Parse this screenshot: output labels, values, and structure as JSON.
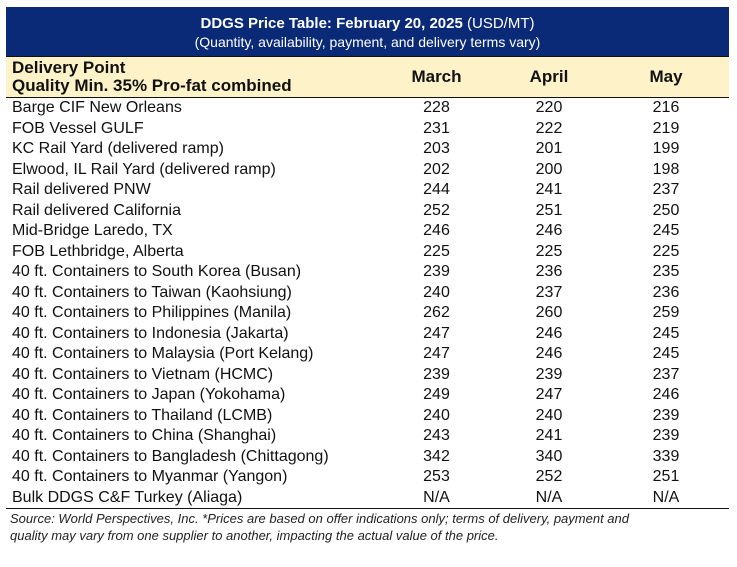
{
  "header": {
    "title_bold": "DDGS Price Table: February 20, 2025",
    "title_unit": " (USD/MT)",
    "subtitle": "(Quantity, availability, payment, and delivery terms vary)"
  },
  "columns": {
    "point_line1": "Delivery Point",
    "point_line2": "Quality Min. 35% Pro-fat combined",
    "months": [
      "March",
      "April",
      "May"
    ]
  },
  "rows": [
    {
      "point": "Barge CIF New Orleans",
      "march": "228",
      "april": "220",
      "may": "216"
    },
    {
      "point": "FOB Vessel GULF",
      "march": "231",
      "april": "222",
      "may": "219"
    },
    {
      "point": "KC Rail Yard (delivered ramp)",
      "march": "203",
      "april": "201",
      "may": "199"
    },
    {
      "point": "Elwood, IL Rail Yard (delivered ramp)",
      "march": "202",
      "april": "200",
      "may": "198"
    },
    {
      "point": "Rail delivered PNW",
      "march": "244",
      "april": "241",
      "may": "237"
    },
    {
      "point": "Rail delivered California",
      "march": "252",
      "april": "251",
      "may": "250"
    },
    {
      "point": "Mid-Bridge Laredo, TX",
      "march": "246",
      "april": "246",
      "may": "245"
    },
    {
      "point": "FOB Lethbridge, Alberta",
      "march": "225",
      "april": "225",
      "may": "225"
    },
    {
      "point": "40 ft. Containers to South Korea (Busan)",
      "march": "239",
      "april": "236",
      "may": "235"
    },
    {
      "point": "40 ft. Containers to Taiwan (Kaohsiung)",
      "march": "240",
      "april": "237",
      "may": "236"
    },
    {
      "point": "40 ft. Containers to Philippines (Manila)",
      "march": "262",
      "april": "260",
      "may": "259"
    },
    {
      "point": "40 ft. Containers to Indonesia (Jakarta)",
      "march": "247",
      "april": "246",
      "may": "245"
    },
    {
      "point": "40 ft. Containers to Malaysia (Port Kelang)",
      "march": "247",
      "april": "246",
      "may": "245"
    },
    {
      "point": "40 ft. Containers to Vietnam (HCMC)",
      "march": "239",
      "april": "239",
      "may": "237"
    },
    {
      "point": "40 ft. Containers to Japan (Yokohama)",
      "march": "249",
      "april": "247",
      "may": "246"
    },
    {
      "point": "40 ft. Containers to Thailand (LCMB)",
      "march": "240",
      "april": "240",
      "may": "239"
    },
    {
      "point": "40 ft. Containers to China (Shanghai)",
      "march": "243",
      "april": "241",
      "may": "239"
    },
    {
      "point": "40 ft. Containers to Bangladesh (Chittagong)",
      "march": "342",
      "april": "340",
      "may": "339"
    },
    {
      "point": "40 ft. Containers to Myanmar (Yangon)",
      "march": "253",
      "april": "252",
      "may": "251"
    },
    {
      "point": "Bulk DDGS C&F Turkey (Aliaga)",
      "march": "N/A",
      "april": "N/A",
      "may": "N/A"
    }
  ],
  "footer": {
    "source_line1": "Source: World Perspectives, Inc. *Prices are based on offer indications only; terms of delivery, payment and",
    "source_line2": "quality may vary from one supplier to another, impacting the actual value of the price."
  },
  "colors": {
    "title_bg": "#0a2a78",
    "header_bg": "#fdf2c8"
  }
}
